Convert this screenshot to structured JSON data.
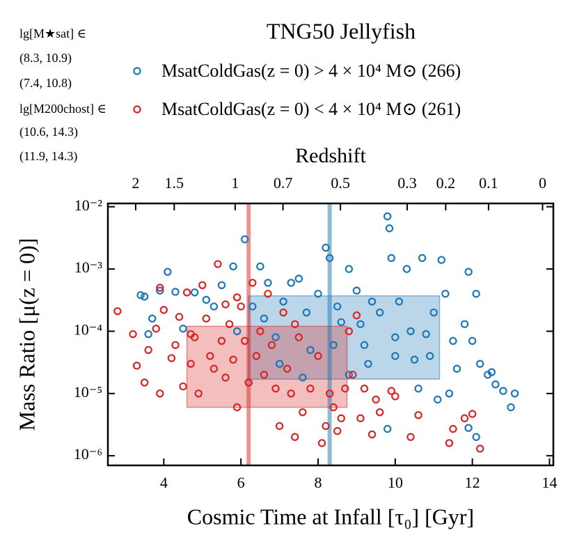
{
  "chart_data": {
    "type": "scatter",
    "title": "TNG50 Jellyfish",
    "xlabel": "Cosmic Time at Infall [τ₀] [Gyr]",
    "ylabel": "Mass Ratio [μ(z = 0)]",
    "x2label": "Redshift",
    "log_y": true,
    "xlim": [
      2.55,
      14.1
    ],
    "ylim": [
      7e-07,
      0.0113
    ],
    "xticks": [
      4,
      6,
      8,
      10,
      12,
      14
    ],
    "yticks": [
      {
        "value": 0.01,
        "label": "10⁻²"
      },
      {
        "value": 0.001,
        "label": "10⁻³"
      },
      {
        "value": 0.0001,
        "label": "10⁻⁴"
      },
      {
        "value": 1e-05,
        "label": "10⁻⁵"
      },
      {
        "value": 1e-06,
        "label": "10⁻⁶"
      }
    ],
    "x2ticks": [
      {
        "value": 3.27,
        "label": "2"
      },
      {
        "value": 4.27,
        "label": "1.5"
      },
      {
        "value": 5.85,
        "label": "1"
      },
      {
        "value": 7.09,
        "label": "0.7"
      },
      {
        "value": 8.58,
        "label": "0.5"
      },
      {
        "value": 10.31,
        "label": "0.3"
      },
      {
        "value": 11.31,
        "label": "0.2"
      },
      {
        "value": 12.42,
        "label": "0.1"
      },
      {
        "value": 13.82,
        "label": "0"
      }
    ],
    "annotations": [
      {
        "text": "lg[M★sat] ∈",
        "color": "#000000"
      },
      {
        "text": "(8.3, 10.9)",
        "color": "#1f77b4"
      },
      {
        "text": "(7.4, 10.8)",
        "color": "#d62728"
      },
      {
        "text": "lg[M200chost] ∈",
        "color": "#000000"
      },
      {
        "text": "(10.6, 14.3)",
        "color": "#1f77b4"
      },
      {
        "text": "(11.9, 14.3)",
        "color": "#d62728"
      }
    ],
    "series": [
      {
        "name": "MsatColdGas(z = 0) > 4 × 10⁴ M⊙ (266)",
        "color": "#1f77b4",
        "median_x": 8.3,
        "box_x": [
          6.2,
          11.15
        ],
        "box_y": [
          1.7e-05,
          0.00037
        ],
        "x": [
          3.5,
          3.4,
          3.6,
          3.7,
          3.9,
          4.1,
          4.3,
          4.5,
          4.8,
          5.1,
          5.3,
          5.5,
          5.8,
          6.1,
          5.9,
          6.3,
          6.5,
          6.7,
          6.6,
          6.9,
          7.1,
          7.3,
          7.5,
          7.7,
          7.8,
          8.0,
          8.2,
          8.3,
          8.4,
          8.5,
          8.6,
          8.8,
          9.0,
          9.1,
          9.2,
          9.4,
          9.6,
          9.8,
          9.85,
          9.9,
          10.0,
          10.1,
          10.3,
          10.4,
          10.5,
          10.7,
          10.8,
          10.9,
          11.0,
          11.2,
          11.3,
          11.4,
          11.5,
          11.6,
          11.8,
          11.9,
          12.0,
          12.1,
          12.2,
          12.4,
          12.6,
          12.8,
          13.0,
          13.1,
          11.9,
          12.1,
          9.8,
          7.6,
          7.0,
          6.2,
          8.8,
          9.3,
          10.0,
          10.6,
          11.1,
          12.5
        ],
        "values": [
          0.00036,
          0.00038,
          9e-05,
          0.00016,
          0.00045,
          0.0009,
          0.00043,
          0.00011,
          0.00042,
          0.00032,
          0.00025,
          0.00055,
          0.0011,
          0.003,
          0.0001,
          0.00025,
          0.0011,
          0.0006,
          0.00016,
          8e-05,
          0.0003,
          0.0006,
          0.0007,
          0.0002,
          5e-05,
          0.0004,
          0.0022,
          0.0015,
          6e-05,
          0.00025,
          0.00014,
          0.001,
          0.00045,
          0.00013,
          6e-05,
          0.0003,
          0.0002,
          0.007,
          0.0045,
          0.0015,
          8e-05,
          0.0003,
          0.001,
          0.0001,
          3.5e-05,
          0.0015,
          9e-05,
          4e-05,
          0.0002,
          0.0014,
          0.0004,
          1e-05,
          7e-05,
          2.5e-05,
          0.00013,
          0.0009,
          7e-05,
          0.0004,
          3e-05,
          2e-05,
          1.4e-05,
          1.1e-05,
          6e-06,
          1e-05,
          2.8e-06,
          2e-06,
          2.7e-06,
          1.8e-05,
          3e-05,
          1.5e-05,
          2e-05,
          3e-05,
          4e-05,
          1.2e-05,
          8e-06,
          2.2e-05
        ]
      },
      {
        "name": "MsatColdGas(z = 0) < 4 × 10⁴ M⊙ (261)",
        "color": "#d62728",
        "median_x": 6.2,
        "box_x": [
          4.6,
          8.75
        ],
        "box_y": [
          6e-06,
          0.00012
        ],
        "x": [
          2.8,
          3.2,
          3.3,
          3.5,
          3.6,
          3.8,
          3.9,
          3.9,
          4.0,
          4.2,
          4.3,
          4.4,
          4.5,
          4.6,
          4.7,
          4.8,
          4.9,
          5.0,
          5.1,
          5.2,
          5.3,
          5.4,
          5.5,
          5.6,
          5.7,
          5.8,
          5.9,
          6.0,
          6.1,
          6.2,
          6.3,
          6.4,
          6.5,
          6.6,
          6.7,
          6.8,
          6.9,
          7.0,
          7.1,
          7.2,
          7.3,
          7.4,
          7.5,
          7.6,
          7.8,
          8.0,
          8.1,
          8.2,
          8.3,
          8.4,
          8.5,
          8.6,
          8.7,
          8.9,
          9.1,
          9.2,
          9.4,
          9.5,
          9.6,
          9.9,
          10.0,
          10.4,
          10.6,
          11.4,
          11.5,
          11.8,
          12.0,
          12.2,
          9.0,
          8.8,
          7.4,
          5.6,
          4.7,
          5.9
        ],
        "values": [
          0.00021,
          9e-05,
          2.8e-05,
          1.5e-05,
          5e-05,
          0.00011,
          0.0005,
          1e-05,
          0.00022,
          3.7e-05,
          6e-05,
          0.00017,
          1.3e-05,
          0.00042,
          3e-05,
          8e-05,
          1e-05,
          0.00055,
          0.00016,
          4e-05,
          2.5e-05,
          0.0012,
          7e-05,
          1.8e-05,
          0.00013,
          3.5e-05,
          6e-06,
          0.00025,
          7e-05,
          1.5e-05,
          0.0006,
          4e-05,
          0.0001,
          2e-05,
          0.0004,
          6e-05,
          1.2e-05,
          3e-06,
          0.0002,
          2.5e-05,
          1e-05,
          2e-06,
          8e-05,
          5e-06,
          1.2e-05,
          4e-05,
          1.6e-06,
          3e-06,
          1e-05,
          6e-06,
          2.5e-06,
          4e-06,
          1.2e-05,
          2e-05,
          4e-06,
          1.2e-05,
          2.2e-06,
          8e-06,
          5e-06,
          1.1e-05,
          9e-06,
          2e-06,
          4.5e-06,
          1.6e-06,
          2.7e-06,
          4e-06,
          4.7e-06,
          1.3e-06,
          0.00018,
          0.0001,
          0.00013,
          0.00027,
          9e-05,
          0.00035
        ]
      }
    ]
  }
}
